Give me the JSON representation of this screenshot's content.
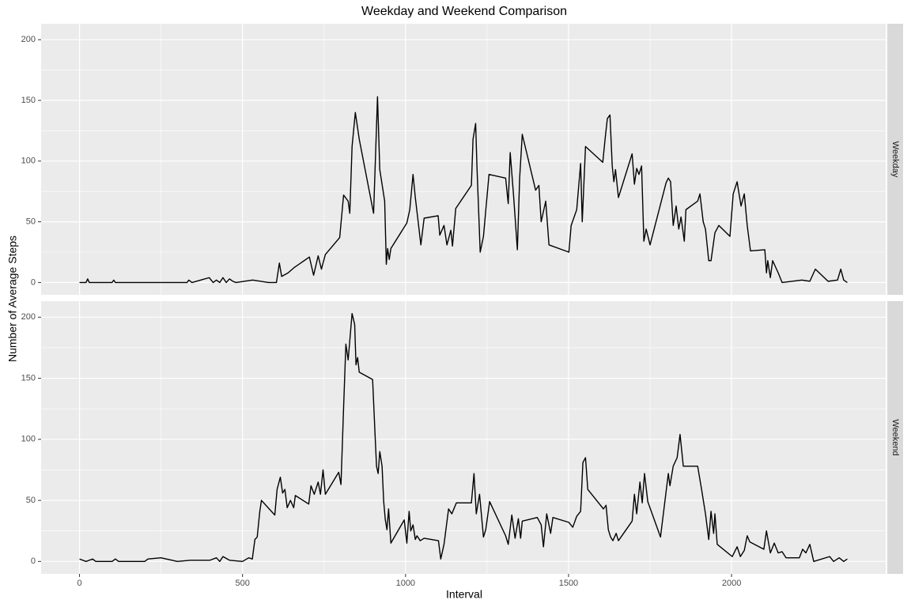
{
  "chart_data": {
    "type": "line",
    "title": "Weekday and Weekend Comparison",
    "x_label": "Interval",
    "y_label": "Number of Average Steps",
    "xlim": [
      -117.75,
      2472.75
    ],
    "ylim": [
      -10.15,
      213.15
    ],
    "xticks": [
      0,
      500,
      1000,
      1500,
      2000
    ],
    "yticks": [
      0,
      50,
      100,
      150,
      200
    ],
    "grid": true,
    "series": [
      {
        "name": "Weekday",
        "color": "#000000",
        "x": [
          0,
          20,
          25,
          30,
          100,
          105,
          110,
          200,
          330,
          335,
          345,
          398,
          410,
          420,
          430,
          440,
          450,
          460,
          470,
          480,
          531,
          580,
          604,
          613,
          620,
          640,
          657,
          705,
          718,
          732,
          742,
          754,
          798,
          810,
          824,
          829,
          836,
          846,
          858,
          902,
          914,
          921,
          936,
          941,
          945,
          950,
          955,
          1004,
          1013,
          1023,
          1030,
          1047,
          1057,
          1100,
          1105,
          1118,
          1127,
          1139,
          1144,
          1154,
          1202,
          1207,
          1215,
          1219,
          1229,
          1239,
          1256,
          1307,
          1315,
          1321,
          1331,
          1343,
          1350,
          1358,
          1399,
          1409,
          1416,
          1430,
          1440,
          1501,
          1508,
          1525,
          1537,
          1542,
          1552,
          1605,
          1612,
          1619,
          1627,
          1634,
          1639,
          1644,
          1653,
          1695,
          1702,
          1709,
          1716,
          1724,
          1731,
          1738,
          1750,
          1799,
          1806,
          1813,
          1821,
          1830,
          1838,
          1845,
          1855,
          1860,
          1896,
          1903,
          1913,
          1920,
          1930,
          1937,
          1949,
          1961,
          1995,
          2005,
          2017,
          2029,
          2039,
          2048,
          2058,
          2102,
          2107,
          2111,
          2119,
          2126,
          2143,
          2155,
          2216,
          2240,
          2257,
          2296,
          2325,
          2335,
          2344,
          2355
        ],
        "values": [
          0,
          0,
          3,
          0,
          0,
          2,
          0,
          0,
          0,
          2,
          0,
          4,
          0,
          2,
          0,
          4,
          0,
          3,
          1,
          0,
          2,
          0,
          0,
          16,
          5,
          8,
          12,
          21,
          6,
          22,
          11,
          23,
          37,
          72,
          67,
          57,
          112,
          140,
          118,
          57,
          153,
          93,
          67,
          15,
          28,
          19,
          28,
          49,
          60,
          89,
          70,
          31,
          53,
          55,
          39,
          47,
          31,
          43,
          30,
          61,
          80,
          118,
          131,
          96,
          25,
          38,
          89,
          86,
          65,
          107,
          73,
          27,
          86,
          122,
          76,
          80,
          50,
          67,
          31,
          25,
          47,
          60,
          98,
          50,
          112,
          99,
          118,
          135,
          138,
          96,
          83,
          93,
          70,
          106,
          81,
          94,
          89,
          96,
          34,
          44,
          31,
          82,
          86,
          83,
          47,
          63,
          44,
          54,
          34,
          60,
          67,
          73,
          50,
          44,
          18,
          18,
          41,
          47,
          38,
          73,
          83,
          63,
          73,
          47,
          26,
          27,
          8,
          18,
          4,
          18,
          8,
          0,
          2,
          1,
          11,
          1,
          2,
          11,
          2,
          0
        ]
      },
      {
        "name": "Weekend",
        "color": "#000000",
        "x": [
          0,
          20,
          40,
          50,
          100,
          110,
          120,
          200,
          210,
          250,
          300,
          340,
          400,
          420,
          430,
          440,
          460,
          500,
          519,
          530,
          538,
          545,
          553,
          558,
          599,
          606,
          616,
          623,
          630,
          637,
          647,
          657,
          662,
          703,
          710,
          720,
          732,
          739,
          747,
          754,
          795,
          802,
          810,
          817,
          824,
          836,
          844,
          848,
          853,
          858,
          899,
          907,
          911,
          916,
          921,
          928,
          933,
          938,
          943,
          948,
          955,
          996,
          1004,
          1011,
          1016,
          1023,
          1030,
          1035,
          1045,
          1057,
          1101,
          1108,
          1118,
          1132,
          1142,
          1156,
          1202,
          1210,
          1217,
          1227,
          1239,
          1246,
          1258,
          1307,
          1315,
          1326,
          1336,
          1346,
          1353,
          1358,
          1404,
          1416,
          1423,
          1433,
          1445,
          1452,
          1501,
          1513,
          1525,
          1537,
          1544,
          1552,
          1559,
          1607,
          1615,
          1622,
          1629,
          1636,
          1646,
          1653,
          1695,
          1702,
          1709,
          1719,
          1726,
          1733,
          1743,
          1782,
          1806,
          1811,
          1821,
          1833,
          1842,
          1852,
          1896,
          1908,
          1920,
          1930,
          1937,
          1945,
          1949,
          1956,
          2002,
          2017,
          2027,
          2039,
          2048,
          2056,
          2099,
          2107,
          2119,
          2131,
          2143,
          2155,
          2167,
          2208,
          2218,
          2228,
          2240,
          2252,
          2301,
          2313,
          2330,
          2344,
          2355
        ],
        "values": [
          2,
          0,
          2,
          0,
          0,
          2,
          0,
          0,
          2,
          3,
          0,
          1,
          1,
          3,
          0,
          4,
          1,
          0,
          3,
          2,
          18,
          20,
          41,
          50,
          38,
          59,
          69,
          56,
          59,
          44,
          50,
          44,
          54,
          47,
          62,
          55,
          65,
          55,
          75,
          55,
          73,
          63,
          126,
          178,
          165,
          203,
          194,
          161,
          167,
          155,
          149,
          101,
          78,
          72,
          90,
          78,
          49,
          34,
          26,
          43,
          15,
          34,
          15,
          41,
          25,
          30,
          18,
          21,
          17,
          19,
          17,
          2,
          14,
          43,
          39,
          48,
          48,
          72,
          39,
          55,
          20,
          26,
          49,
          21,
          14,
          38,
          19,
          35,
          19,
          33,
          36,
          30,
          12,
          39,
          23,
          36,
          32,
          28,
          37,
          41,
          81,
          85,
          59,
          43,
          46,
          26,
          20,
          17,
          23,
          17,
          33,
          55,
          39,
          65,
          48,
          72,
          49,
          20,
          72,
          62,
          78,
          85,
          104,
          78,
          78,
          59,
          39,
          18,
          41,
          23,
          39,
          14,
          4,
          12,
          4,
          9,
          21,
          16,
          10,
          25,
          7,
          15,
          7,
          8,
          3,
          3,
          10,
          7,
          14,
          0,
          4,
          0,
          3,
          0,
          2
        ]
      }
    ]
  }
}
